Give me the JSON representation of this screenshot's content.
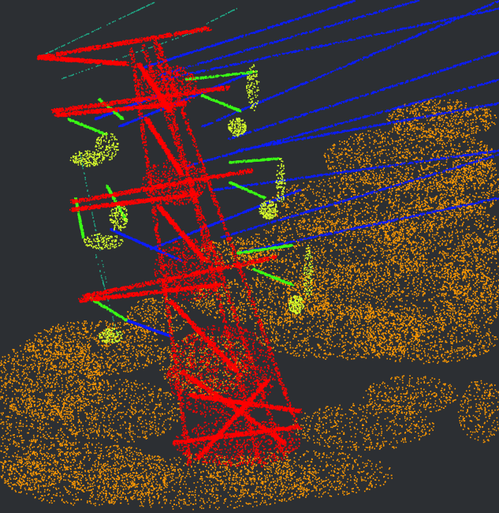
{
  "view": {
    "background_color": "#2c2f33",
    "classes": [
      {
        "name": "transmission-tower",
        "color": "#ff0000"
      },
      {
        "name": "vegetation",
        "color": "#ff9900"
      },
      {
        "name": "conductor-lines",
        "color": "#0b1cff"
      },
      {
        "name": "insulators",
        "color": "#d9ff2a"
      },
      {
        "name": "fittings",
        "color": "#39ff14"
      },
      {
        "name": "ground-wire",
        "color": "#1fae8a"
      }
    ]
  }
}
